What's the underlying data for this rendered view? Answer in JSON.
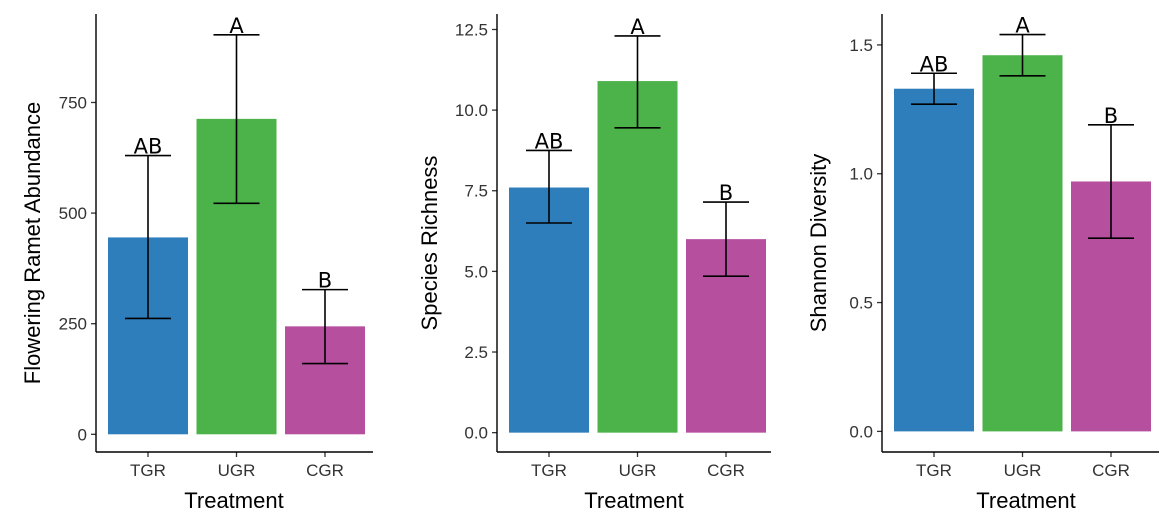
{
  "colors": {
    "TGR": "#2f7ebc",
    "UGR": "#4cb24a",
    "CGR": "#b74f9f"
  },
  "chart_data": [
    {
      "type": "bar",
      "title": "",
      "xlabel": "Treatment",
      "ylabel": "Flowering Ramet Abundance",
      "categories": [
        "TGR",
        "UGR",
        "CGR"
      ],
      "values": [
        445,
        713,
        244
      ],
      "error_low": [
        262,
        522,
        160
      ],
      "error_high": [
        630,
        903,
        327
      ],
      "significance": [
        "AB",
        "A",
        "B"
      ],
      "ylim": [
        -40,
        950
      ],
      "yticks": [
        0,
        250,
        500,
        750
      ],
      "ytick_labels": [
        "0",
        "250",
        "500",
        "750"
      ]
    },
    {
      "type": "bar",
      "title": "",
      "xlabel": "Treatment",
      "ylabel": "Species Richness",
      "categories": [
        "TGR",
        "UGR",
        "CGR"
      ],
      "values": [
        7.6,
        10.9,
        6.0
      ],
      "error_low": [
        6.5,
        9.45,
        4.85
      ],
      "error_high": [
        8.75,
        12.3,
        7.15
      ],
      "significance": [
        "AB",
        "A",
        "B"
      ],
      "ylim": [
        -0.6,
        12.98
      ],
      "yticks": [
        0,
        2.5,
        5,
        7.5,
        10,
        12.5
      ],
      "ytick_labels": [
        "0.0",
        "2.5",
        "5.0",
        "7.5",
        "10.0",
        "12.5"
      ]
    },
    {
      "type": "bar",
      "title": "",
      "xlabel": "Treatment",
      "ylabel": "Shannon Diversity",
      "categories": [
        "TGR",
        "UGR",
        "CGR"
      ],
      "values": [
        1.33,
        1.46,
        0.97
      ],
      "error_low": [
        1.27,
        1.38,
        0.75
      ],
      "error_high": [
        1.39,
        1.54,
        1.19
      ],
      "significance": [
        "AB",
        "A",
        "B"
      ],
      "ylim": [
        -0.08,
        1.62
      ],
      "yticks": [
        0,
        0.5,
        1.0,
        1.5
      ],
      "ytick_labels": [
        "0.0",
        "0.5",
        "1.0",
        "1.5"
      ]
    }
  ]
}
